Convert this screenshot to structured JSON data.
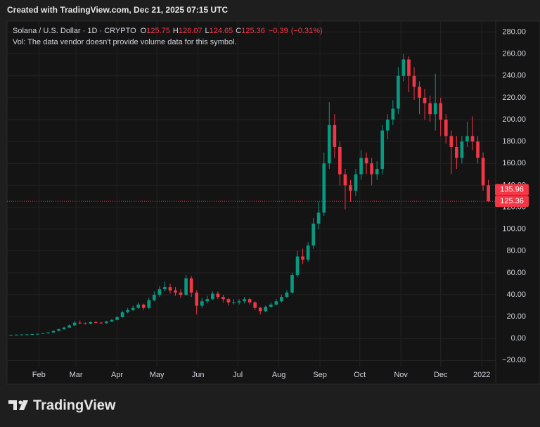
{
  "header": {
    "caption": "Created with TradingView.com, Dec 21, 2025 07:15 UTC"
  },
  "branding": {
    "name": "TradingView"
  },
  "chart_data": {
    "type": "candlestick",
    "title": "Solana / U.S. Dollar · 1D · CRYPTO",
    "quote": [
      {
        "label": "O",
        "value": 125.75
      },
      {
        "label": "H",
        "value": 126.07
      },
      {
        "label": "L",
        "value": 124.65
      },
      {
        "label": "C",
        "value": 125.36
      }
    ],
    "change": {
      "value": -0.39,
      "label": "−0.39"
    },
    "change_pct": {
      "value": -0.31,
      "label": "(−0.31%)"
    },
    "volume_note": "Vol: The data vendor doesn't provide volume data for this symbol.",
    "up_color": "#089981",
    "down_color": "#f23645",
    "grid": true,
    "xlim": [
      7,
      375.5
    ],
    "ylim": [
      -41,
      290
    ],
    "xticks": [
      {
        "value": 31,
        "label": "Feb"
      },
      {
        "value": 59,
        "label": "Mar"
      },
      {
        "value": 90,
        "label": "Apr"
      },
      {
        "value": 120,
        "label": "May"
      },
      {
        "value": 151,
        "label": "Jun"
      },
      {
        "value": 181,
        "label": "Jul"
      },
      {
        "value": 212,
        "label": "Aug"
      },
      {
        "value": 243,
        "label": "Sep"
      },
      {
        "value": 273,
        "label": "Oct"
      },
      {
        "value": 304,
        "label": "Nov"
      },
      {
        "value": 334,
        "label": "Dec"
      },
      {
        "value": 365,
        "label": "2022"
      }
    ],
    "yticks": [
      {
        "value": -20,
        "label": "−20.00"
      },
      {
        "value": 0,
        "label": "0.00"
      },
      {
        "value": 20,
        "label": "20.00"
      },
      {
        "value": 40,
        "label": "40.00"
      },
      {
        "value": 60,
        "label": "60.00"
      },
      {
        "value": 80,
        "label": "80.00"
      },
      {
        "value": 100,
        "label": "100.00"
      },
      {
        "value": 120,
        "label": "120.00"
      },
      {
        "value": 140,
        "label": "140.00"
      },
      {
        "value": 160,
        "label": "160.00"
      },
      {
        "value": 180,
        "label": "180.00"
      },
      {
        "value": 200,
        "label": "200.00"
      },
      {
        "value": 220,
        "label": "220.00"
      },
      {
        "value": 240,
        "label": "240.00"
      },
      {
        "value": 260,
        "label": "260.00"
      },
      {
        "value": 280,
        "label": "280.00"
      }
    ],
    "price_markers": [
      135.96,
      125.36
    ],
    "x": [
      10,
      14,
      18,
      22,
      26,
      30,
      34,
      38,
      42,
      46,
      50,
      54,
      58,
      62,
      66,
      70,
      74,
      78,
      82,
      86,
      90,
      94,
      98,
      102,
      106,
      110,
      114,
      118,
      122,
      126,
      130,
      134,
      138,
      142,
      146,
      150,
      154,
      158,
      162,
      166,
      170,
      174,
      178,
      182,
      186,
      190,
      194,
      198,
      202,
      206,
      210,
      214,
      218,
      222,
      226,
      230,
      234,
      238,
      242,
      246,
      250,
      254,
      258,
      262,
      266,
      270,
      274,
      278,
      282,
      286,
      290,
      294,
      298,
      302,
      306,
      310,
      314,
      318,
      322,
      326,
      330,
      334,
      338,
      342,
      346,
      350,
      354,
      358,
      362,
      366,
      370
    ],
    "open": [
      3.3,
      3.4,
      3.5,
      3.6,
      3.7,
      4.0,
      4.2,
      4.8,
      5.5,
      7.0,
      8.5,
      10.0,
      12.0,
      14.5,
      14.0,
      13.5,
      15.0,
      14.5,
      14.0,
      15.5,
      17.0,
      19.5,
      24,
      26,
      28,
      31,
      28,
      35,
      40,
      45,
      47,
      44,
      42,
      40,
      55,
      42,
      30,
      34,
      36,
      41,
      38,
      36,
      33,
      33,
      34,
      36,
      33,
      28,
      25,
      29,
      31,
      34,
      38,
      42,
      58,
      75,
      72,
      85,
      105,
      115,
      160,
      195,
      175,
      150,
      140,
      135,
      150,
      165,
      160,
      150,
      155,
      190,
      200,
      210,
      240,
      255,
      240,
      230,
      220,
      215,
      205,
      215,
      200,
      185,
      175,
      165,
      180,
      185,
      180,
      165,
      140
    ],
    "high": [
      3.6,
      3.7,
      3.8,
      3.9,
      4.2,
      4.5,
      5.0,
      5.8,
      7.4,
      9.0,
      10.6,
      12.8,
      16.0,
      16.5,
      14.8,
      15.8,
      15.9,
      15.2,
      16.2,
      18.0,
      20.5,
      25.5,
      28,
      30,
      33,
      32,
      37,
      43,
      48,
      52,
      50,
      47,
      45,
      58,
      57,
      44,
      37,
      39,
      43,
      43,
      40,
      37,
      36,
      36,
      38,
      37,
      34,
      29,
      30,
      33,
      36,
      40,
      44,
      60,
      80,
      82,
      88,
      110,
      125,
      170,
      216,
      205,
      180,
      155,
      145,
      155,
      172,
      170,
      165,
      162,
      195,
      205,
      218,
      248,
      260,
      258,
      248,
      235,
      228,
      222,
      242,
      220,
      205,
      190,
      185,
      185,
      198,
      203,
      185,
      170,
      145
    ],
    "low": [
      3.2,
      3.3,
      3.4,
      3.5,
      3.6,
      3.9,
      4.1,
      4.6,
      5.3,
      6.8,
      8.1,
      9.5,
      11.5,
      13.0,
      12.8,
      13.0,
      13.8,
      13.3,
      13.6,
      15.0,
      16.5,
      19,
      23,
      25,
      27,
      26,
      27,
      34,
      38,
      43,
      41,
      39,
      37,
      39,
      38,
      22,
      28,
      32,
      35,
      36,
      33,
      30,
      31,
      31,
      32,
      31,
      26,
      22,
      24,
      28,
      30,
      33,
      37,
      41,
      56,
      68,
      70,
      82,
      100,
      112,
      155,
      165,
      140,
      118,
      125,
      130,
      145,
      150,
      140,
      145,
      150,
      182,
      195,
      205,
      235,
      225,
      218,
      205,
      200,
      198,
      190,
      185,
      178,
      150,
      155,
      160,
      175,
      172,
      160,
      135,
      124.65
    ],
    "close": [
      3.4,
      3.5,
      3.6,
      3.7,
      4.0,
      4.2,
      4.8,
      5.5,
      7.0,
      8.5,
      10.0,
      12.0,
      14.5,
      14.0,
      13.5,
      15.0,
      14.5,
      14.0,
      15.5,
      17.0,
      19.5,
      24,
      26,
      28,
      31,
      28,
      35,
      40,
      45,
      47,
      44,
      42,
      40,
      55,
      42,
      30,
      34,
      36,
      41,
      38,
      36,
      33,
      33,
      34,
      36,
      33,
      28,
      25,
      29,
      31,
      34,
      38,
      42,
      58,
      75,
      72,
      85,
      105,
      115,
      160,
      195,
      175,
      150,
      140,
      135,
      150,
      165,
      160,
      150,
      155,
      190,
      200,
      210,
      240,
      255,
      240,
      230,
      220,
      215,
      205,
      215,
      200,
      185,
      175,
      165,
      180,
      185,
      180,
      165,
      140,
      125.36
    ]
  }
}
